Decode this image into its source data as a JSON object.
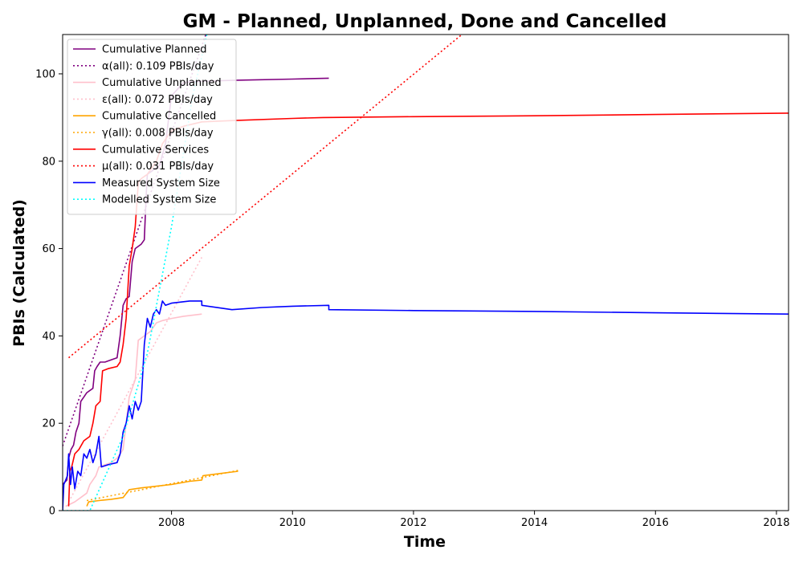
{
  "chart_data": {
    "type": "line",
    "title": "GM - Planned, Unplanned, Done  and Cancelled",
    "xlabel": "Time",
    "ylabel": "PBIs (Calculated)",
    "xlim": [
      2006.2,
      2018.2
    ],
    "ylim": [
      0,
      109
    ],
    "xticks": [
      2008,
      2010,
      2012,
      2014,
      2016,
      2018
    ],
    "yticks": [
      0,
      20,
      40,
      60,
      80,
      100
    ],
    "grid": false,
    "legend_position": "upper-left",
    "series": [
      {
        "name": "Cumulative Planned",
        "color": "#800080",
        "style": "solid",
        "points": [
          [
            2006.2,
            6
          ],
          [
            2006.27,
            7
          ],
          [
            2006.3,
            12
          ],
          [
            2006.34,
            14
          ],
          [
            2006.38,
            15
          ],
          [
            2006.42,
            18
          ],
          [
            2006.47,
            20
          ],
          [
            2006.5,
            25
          ],
          [
            2006.55,
            26
          ],
          [
            2006.6,
            27
          ],
          [
            2006.7,
            28
          ],
          [
            2006.73,
            32
          ],
          [
            2006.77,
            33
          ],
          [
            2006.82,
            34
          ],
          [
            2006.9,
            34
          ],
          [
            2007.0,
            34.5
          ],
          [
            2007.1,
            35
          ],
          [
            2007.15,
            40
          ],
          [
            2007.2,
            47
          ],
          [
            2007.25,
            48.5
          ],
          [
            2007.3,
            49
          ],
          [
            2007.35,
            57
          ],
          [
            2007.4,
            60
          ],
          [
            2007.5,
            61
          ],
          [
            2007.55,
            62
          ],
          [
            2007.58,
            72
          ],
          [
            2007.6,
            77
          ],
          [
            2007.7,
            78
          ],
          [
            2007.8,
            79
          ],
          [
            2007.9,
            84
          ],
          [
            2008.0,
            95
          ],
          [
            2008.2,
            98
          ],
          [
            2008.5,
            98.3
          ],
          [
            2009.0,
            98.5
          ],
          [
            2010.0,
            98.8
          ],
          [
            2010.6,
            99
          ]
        ]
      },
      {
        "name": "α(all): 0.109 PBIs/day",
        "color": "#800080",
        "style": "dotted",
        "points": [
          [
            2006.2,
            14.8
          ],
          [
            2008.6,
            110.3
          ]
        ]
      },
      {
        "name": "Cumulative Unplanned",
        "color": "#ffc0cb",
        "style": "solid",
        "points": [
          [
            2006.25,
            1
          ],
          [
            2006.4,
            2
          ],
          [
            2006.5,
            3
          ],
          [
            2006.6,
            4
          ],
          [
            2006.65,
            6
          ],
          [
            2006.7,
            7
          ],
          [
            2006.75,
            8
          ],
          [
            2006.8,
            10
          ],
          [
            2006.9,
            10.5
          ],
          [
            2007.0,
            11
          ],
          [
            2007.1,
            12
          ],
          [
            2007.2,
            14
          ],
          [
            2007.3,
            26
          ],
          [
            2007.4,
            30
          ],
          [
            2007.45,
            39
          ],
          [
            2007.55,
            40
          ],
          [
            2007.65,
            41
          ],
          [
            2007.75,
            43
          ],
          [
            2007.85,
            43.5
          ],
          [
            2008.0,
            44
          ],
          [
            2008.2,
            44.5
          ],
          [
            2008.5,
            45
          ]
        ]
      },
      {
        "name": "ε(all): 0.072 PBIs/day",
        "color": "#ffc0cb",
        "style": "dotted",
        "points": [
          [
            2006.3,
            2
          ],
          [
            2008.5,
            58
          ]
        ]
      },
      {
        "name": "Cumulative Cancelled",
        "color": "#ffa500",
        "style": "solid",
        "points": [
          [
            2006.6,
            1
          ],
          [
            2006.63,
            2
          ],
          [
            2006.8,
            2.3
          ],
          [
            2007.0,
            2.6
          ],
          [
            2007.2,
            3
          ],
          [
            2007.3,
            4.8
          ],
          [
            2007.5,
            5.2
          ],
          [
            2008.0,
            6
          ],
          [
            2008.3,
            6.7
          ],
          [
            2008.5,
            7
          ],
          [
            2008.52,
            8
          ],
          [
            2008.8,
            8.5
          ],
          [
            2009.1,
            9
          ]
        ]
      },
      {
        "name": "γ(all): 0.008 PBIs/day",
        "color": "#ffa500",
        "style": "dotted",
        "points": [
          [
            2006.6,
            2.3
          ],
          [
            2009.1,
            9.2
          ]
        ]
      },
      {
        "name": "Cumulative Services",
        "color": "#ff0000",
        "style": "solid",
        "points": [
          [
            2006.3,
            1
          ],
          [
            2006.32,
            9
          ],
          [
            2006.35,
            10
          ],
          [
            2006.4,
            13
          ],
          [
            2006.47,
            14
          ],
          [
            2006.55,
            16
          ],
          [
            2006.65,
            17
          ],
          [
            2006.7,
            20
          ],
          [
            2006.75,
            24
          ],
          [
            2006.82,
            25
          ],
          [
            2006.86,
            32
          ],
          [
            2006.95,
            32.5
          ],
          [
            2007.1,
            33
          ],
          [
            2007.15,
            34
          ],
          [
            2007.2,
            38
          ],
          [
            2007.25,
            44
          ],
          [
            2007.3,
            56
          ],
          [
            2007.35,
            60
          ],
          [
            2007.4,
            65
          ],
          [
            2007.45,
            75
          ],
          [
            2007.5,
            76
          ],
          [
            2007.55,
            76.5
          ],
          [
            2007.6,
            77
          ],
          [
            2007.65,
            78
          ],
          [
            2007.75,
            80
          ],
          [
            2007.85,
            84
          ],
          [
            2007.9,
            85
          ],
          [
            2008.0,
            87
          ],
          [
            2008.2,
            88
          ],
          [
            2008.5,
            89
          ],
          [
            2009.0,
            89.3
          ],
          [
            2010.0,
            89.8
          ],
          [
            2010.5,
            90
          ],
          [
            2012.0,
            90.2
          ],
          [
            2014.0,
            90.4
          ],
          [
            2016.0,
            90.7
          ],
          [
            2018.2,
            91
          ]
        ]
      },
      {
        "name": "μ(all): 0.031 PBIs/day",
        "color": "#ff0000",
        "style": "dotted",
        "points": [
          [
            2006.3,
            35
          ],
          [
            2012.8,
            109
          ]
        ]
      },
      {
        "name": "Measured System Size",
        "color": "#0000ff",
        "style": "solid",
        "points": [
          [
            2006.2,
            0
          ],
          [
            2006.22,
            6
          ],
          [
            2006.28,
            8
          ],
          [
            2006.3,
            13
          ],
          [
            2006.33,
            6
          ],
          [
            2006.36,
            10
          ],
          [
            2006.4,
            5
          ],
          [
            2006.45,
            9
          ],
          [
            2006.5,
            8
          ],
          [
            2006.55,
            13
          ],
          [
            2006.6,
            12
          ],
          [
            2006.65,
            14
          ],
          [
            2006.7,
            11
          ],
          [
            2006.75,
            13
          ],
          [
            2006.8,
            17
          ],
          [
            2006.84,
            10
          ],
          [
            2006.95,
            10.5
          ],
          [
            2007.1,
            11
          ],
          [
            2007.15,
            13
          ],
          [
            2007.2,
            18
          ],
          [
            2007.25,
            20
          ],
          [
            2007.3,
            24
          ],
          [
            2007.35,
            21
          ],
          [
            2007.4,
            25
          ],
          [
            2007.45,
            23
          ],
          [
            2007.5,
            25
          ],
          [
            2007.55,
            38
          ],
          [
            2007.6,
            44
          ],
          [
            2007.65,
            42
          ],
          [
            2007.7,
            45
          ],
          [
            2007.75,
            46
          ],
          [
            2007.8,
            45
          ],
          [
            2007.85,
            48
          ],
          [
            2007.9,
            47
          ],
          [
            2008.0,
            47.5
          ],
          [
            2008.3,
            48
          ],
          [
            2008.5,
            48
          ],
          [
            2008.5,
            47
          ],
          [
            2009.0,
            46
          ],
          [
            2009.5,
            46.5
          ],
          [
            2010.0,
            46.8
          ],
          [
            2010.6,
            47
          ],
          [
            2010.6,
            46
          ],
          [
            2012.0,
            45.8
          ],
          [
            2014.0,
            45.6
          ],
          [
            2016.0,
            45.3
          ],
          [
            2018.2,
            45
          ]
        ]
      },
      {
        "name": "Modelled System Size",
        "color": "#00ffff",
        "style": "dotted",
        "points": [
          [
            2006.2,
            0
          ],
          [
            2006.65,
            0
          ],
          [
            2007.2,
            17
          ],
          [
            2007.6,
            36
          ],
          [
            2008.0,
            65
          ],
          [
            2008.35,
            95
          ],
          [
            2008.6,
            110
          ]
        ]
      }
    ]
  }
}
